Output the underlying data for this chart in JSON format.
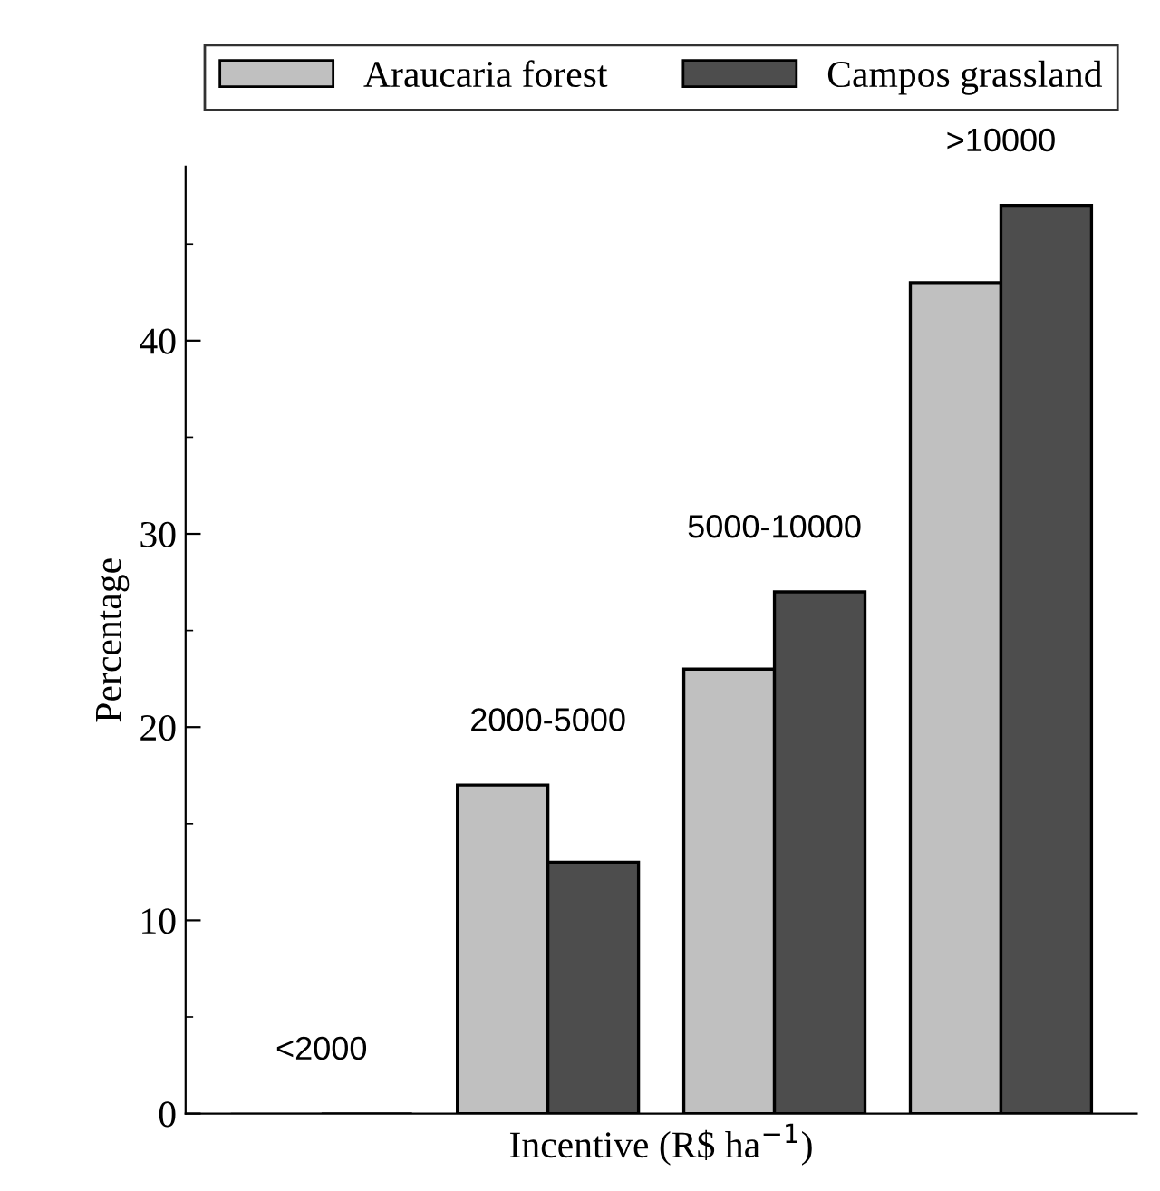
{
  "chart_data": {
    "type": "bar",
    "xlabel": "Incentive (R$ ha$^{−1}$)",
    "ylabel": "Percentage",
    "categories": [
      "<2000",
      "2000-5000",
      "5000-10000",
      ">10000"
    ],
    "series": [
      {
        "name": "Araucaria forest",
        "color": "#c0c0c0",
        "values": [
          0,
          17,
          23,
          43
        ]
      },
      {
        "name": "Campos grassland",
        "color": "#4d4d4d",
        "values": [
          0,
          13,
          27,
          47
        ]
      }
    ],
    "ylim": [
      0,
      49
    ],
    "yticks": [
      0,
      {
        "value": 5,
        "label": null
      },
      10,
      {
        "value": 15,
        "label": null
      },
      20,
      {
        "value": 25,
        "label": null
      },
      30,
      {
        "value": 35,
        "label": null
      },
      40,
      {
        "value": 45,
        "label": null
      }
    ],
    "grid": false,
    "legend": "top"
  }
}
